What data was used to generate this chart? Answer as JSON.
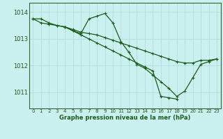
{
  "title": "Graphe pression niveau de la mer (hPa)",
  "bg_color": "#caf0f0",
  "line_color": "#1a5c1a",
  "grid_color": "#b0dede",
  "axis_color": "#336633",
  "text_color": "#1a5c1a",
  "xlim": [
    -0.5,
    23.5
  ],
  "ylim": [
    1010.4,
    1014.35
  ],
  "yticks": [
    1011,
    1012,
    1013,
    1014
  ],
  "xticks": [
    0,
    1,
    2,
    3,
    4,
    5,
    6,
    7,
    8,
    9,
    10,
    11,
    12,
    13,
    14,
    15,
    16,
    17,
    18,
    19,
    20,
    21,
    22,
    23
  ],
  "series1_x": [
    0,
    1,
    2,
    3,
    4,
    5,
    6,
    7,
    8,
    9,
    10,
    11,
    12,
    13,
    14,
    15,
    16,
    17,
    18,
    19,
    20,
    21,
    22,
    23
  ],
  "series1_y": [
    1013.75,
    1013.75,
    1013.6,
    1013.5,
    1013.45,
    1013.35,
    1013.25,
    1013.2,
    1013.15,
    1013.05,
    1012.95,
    1012.85,
    1012.75,
    1012.65,
    1012.55,
    1012.45,
    1012.35,
    1012.25,
    1012.15,
    1012.1,
    1012.1,
    1012.2,
    1012.2,
    1012.25
  ],
  "series2_x": [
    0,
    1,
    2,
    3,
    4,
    5,
    6,
    7,
    8,
    9,
    10,
    11,
    12,
    13,
    14,
    15,
    16,
    17,
    18,
    19,
    20,
    21,
    22,
    23
  ],
  "series2_y": [
    1013.75,
    1013.6,
    1013.55,
    1013.5,
    1013.45,
    1013.3,
    1013.2,
    1013.75,
    1013.85,
    1013.95,
    1013.6,
    1012.9,
    1012.5,
    1012.05,
    1011.9,
    1011.65,
    1011.4,
    1011.15,
    1010.85,
    1011.05,
    1011.55,
    1012.05,
    1012.15,
    1012.25
  ],
  "series3_x": [
    4,
    5,
    6,
    7,
    8,
    9,
    10,
    11,
    12,
    13,
    14,
    15,
    16,
    17,
    18
  ],
  "series3_y": [
    1013.45,
    1013.3,
    1013.15,
    1013.0,
    1012.85,
    1012.7,
    1012.55,
    1012.4,
    1012.25,
    1012.1,
    1011.95,
    1011.8,
    1010.85,
    1010.8,
    1010.75
  ]
}
